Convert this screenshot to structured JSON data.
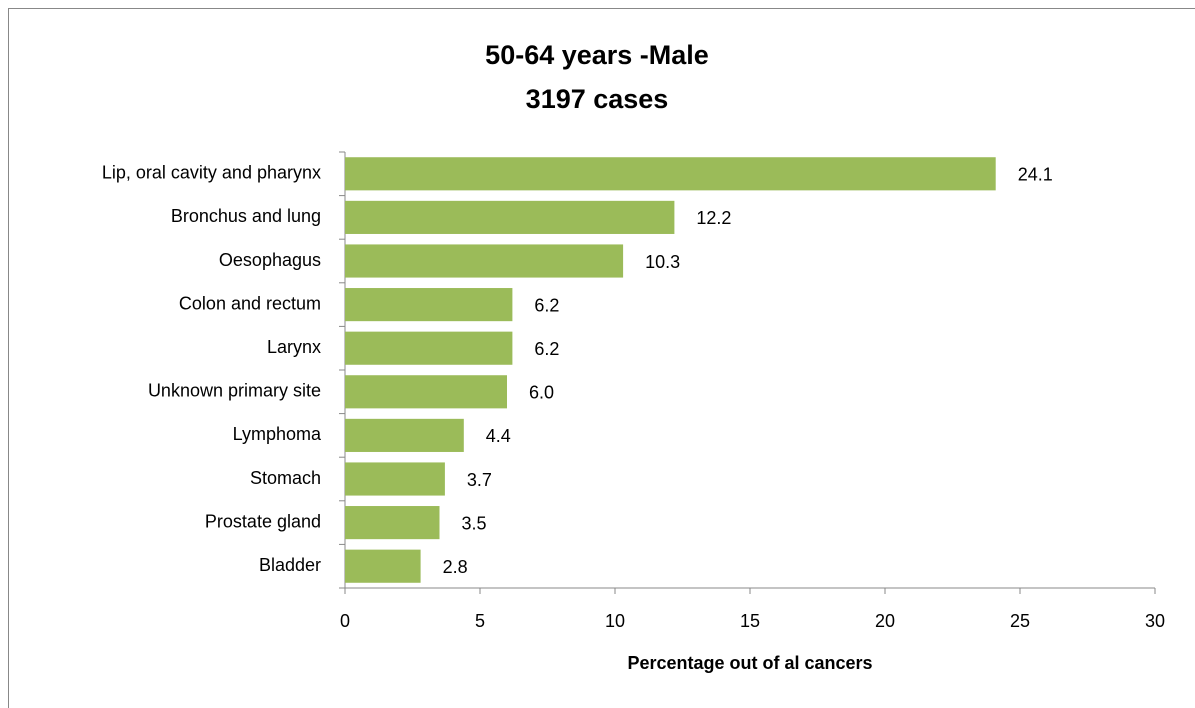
{
  "chart_data": {
    "type": "bar",
    "orientation": "horizontal",
    "title": "50-64 years -Male",
    "subtitle": "3197 cases",
    "xlabel": "Percentage out of al cancers",
    "categories": [
      "Lip, oral cavity and pharynx",
      "Bronchus and lung",
      "Oesophagus",
      "Colon and rectum",
      "Larynx",
      "Unknown primary site",
      "Lymphoma",
      "Stomach",
      "Prostate gland",
      "Bladder"
    ],
    "values": [
      24.1,
      12.2,
      10.3,
      6.2,
      6.2,
      6.0,
      4.4,
      3.7,
      3.5,
      2.8
    ],
    "value_labels": [
      "24.1",
      "12.2",
      "10.3",
      "6.2",
      "6.2",
      "6.0",
      "4.4",
      "3.7",
      "3.5",
      "2.8"
    ],
    "color": "#9bbb59",
    "xlim": [
      0,
      30
    ],
    "xticks": [
      0,
      5,
      10,
      15,
      20,
      25,
      30
    ],
    "grid": false
  }
}
